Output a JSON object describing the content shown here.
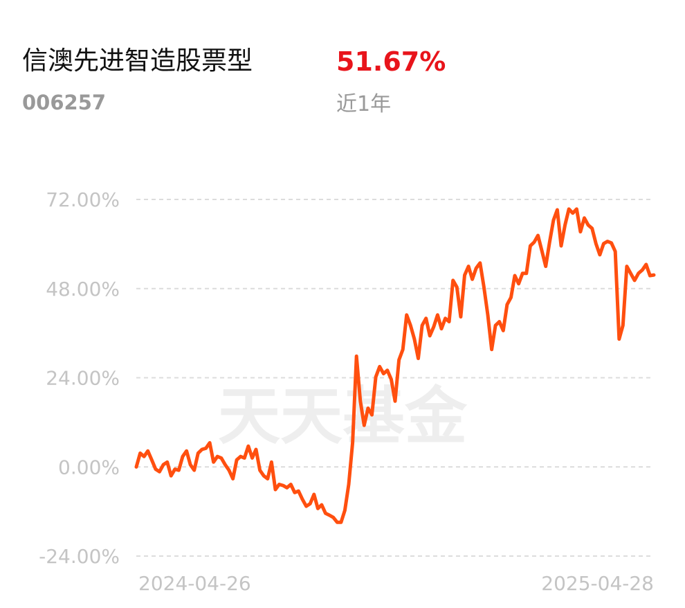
{
  "header": {
    "fund_name": "信澳先进智造股票型",
    "return": "51.67%",
    "fund_code": "006257",
    "period": "近1年"
  },
  "chart_data": {
    "type": "line",
    "watermark": "天天基金",
    "categories": [
      "2024-04-26",
      null,
      null,
      null,
      null,
      null,
      null,
      null,
      null,
      null,
      null,
      null,
      null,
      null,
      null,
      null,
      null,
      null,
      null,
      null,
      null,
      null,
      null,
      null,
      null,
      null,
      null,
      null,
      null,
      null,
      null,
      null,
      null,
      null,
      null,
      null,
      null,
      null,
      null,
      null,
      null,
      null,
      null,
      null,
      null,
      null,
      null,
      null,
      null,
      null,
      null,
      null,
      null,
      null,
      null,
      null,
      null,
      null,
      null,
      null,
      null,
      null,
      null,
      null,
      null,
      null,
      null,
      null,
      null,
      null,
      null,
      null,
      null,
      null,
      null,
      null,
      null,
      null,
      null,
      null,
      null,
      null,
      null,
      null,
      null,
      null,
      null,
      null,
      null,
      null,
      null,
      null,
      null,
      null,
      null,
      null,
      null,
      null,
      null,
      null,
      null,
      null,
      null,
      null,
      null,
      null,
      null,
      null,
      null,
      null,
      null,
      null,
      null,
      null,
      null,
      null,
      null,
      null,
      null,
      null,
      null,
      null,
      null,
      null,
      null,
      null,
      null,
      null,
      null,
      null,
      null,
      null,
      null,
      null,
      "2025-04-28"
    ],
    "series": [
      {
        "color": "#ff4f0f",
        "values": [
          0,
          3.7,
          2.8,
          4.3,
          1.9,
          -0.6,
          -1.3,
          0.6,
          1.3,
          -2.4,
          -0.6,
          -0.9,
          2.8,
          4.3,
          0.6,
          -0.9,
          3.7,
          4.7,
          5.0,
          6.5,
          1.3,
          2.8,
          2.4,
          0.6,
          -0.9,
          -3.2,
          1.9,
          2.8,
          2.4,
          5.6,
          2.4,
          4.7,
          -0.9,
          -2.4,
          -3.2,
          1.3,
          -6.1,
          -4.7,
          -5.0,
          -5.6,
          -4.7,
          -6.9,
          -6.5,
          -8.7,
          -10.6,
          -9.9,
          -7.4,
          -11.2,
          -10.2,
          -12.5,
          -13.0,
          -13.6,
          -14.9,
          -14.9,
          -11.7,
          -4.7,
          6.5,
          29.8,
          17.7,
          11.2,
          15.8,
          14.0,
          24.2,
          27.0,
          25.1,
          26.0,
          23.6,
          17.7,
          28.8,
          31.6,
          40.9,
          38.1,
          34.4,
          29.2,
          38.1,
          40.0,
          35.3,
          37.7,
          40.9,
          37.2,
          40.0,
          39.1,
          50.2,
          48.4,
          40.4,
          51.6,
          54.0,
          50.5,
          53.5,
          54.9,
          48.4,
          40.9,
          31.6,
          38.1,
          39.1,
          36.7,
          43.7,
          45.6,
          51.5,
          49.3,
          52.1,
          52.1,
          59.5,
          60.5,
          62.3,
          58.2,
          54.0,
          60.5,
          66.4,
          69.2,
          59.5,
          65.1,
          69.4,
          68.3,
          69.4,
          63.3,
          67.0,
          65.1,
          64.2,
          60.1,
          57.1,
          60.1,
          60.7,
          60.3,
          58.0,
          34.4,
          38.1,
          54.0,
          52.1,
          50.2,
          52.1,
          53.0,
          54.5,
          51.5,
          51.67
        ]
      }
    ],
    "ylim": [
      -24,
      72
    ],
    "yticks": [
      {
        "value": -24,
        "label": "-24.00%"
      },
      {
        "value": 0,
        "label": "0.00%"
      },
      {
        "value": 24,
        "label": "24.00%"
      },
      {
        "value": 48,
        "label": "48.00%"
      },
      {
        "value": 72,
        "label": "72.00%"
      }
    ],
    "grid": true
  }
}
